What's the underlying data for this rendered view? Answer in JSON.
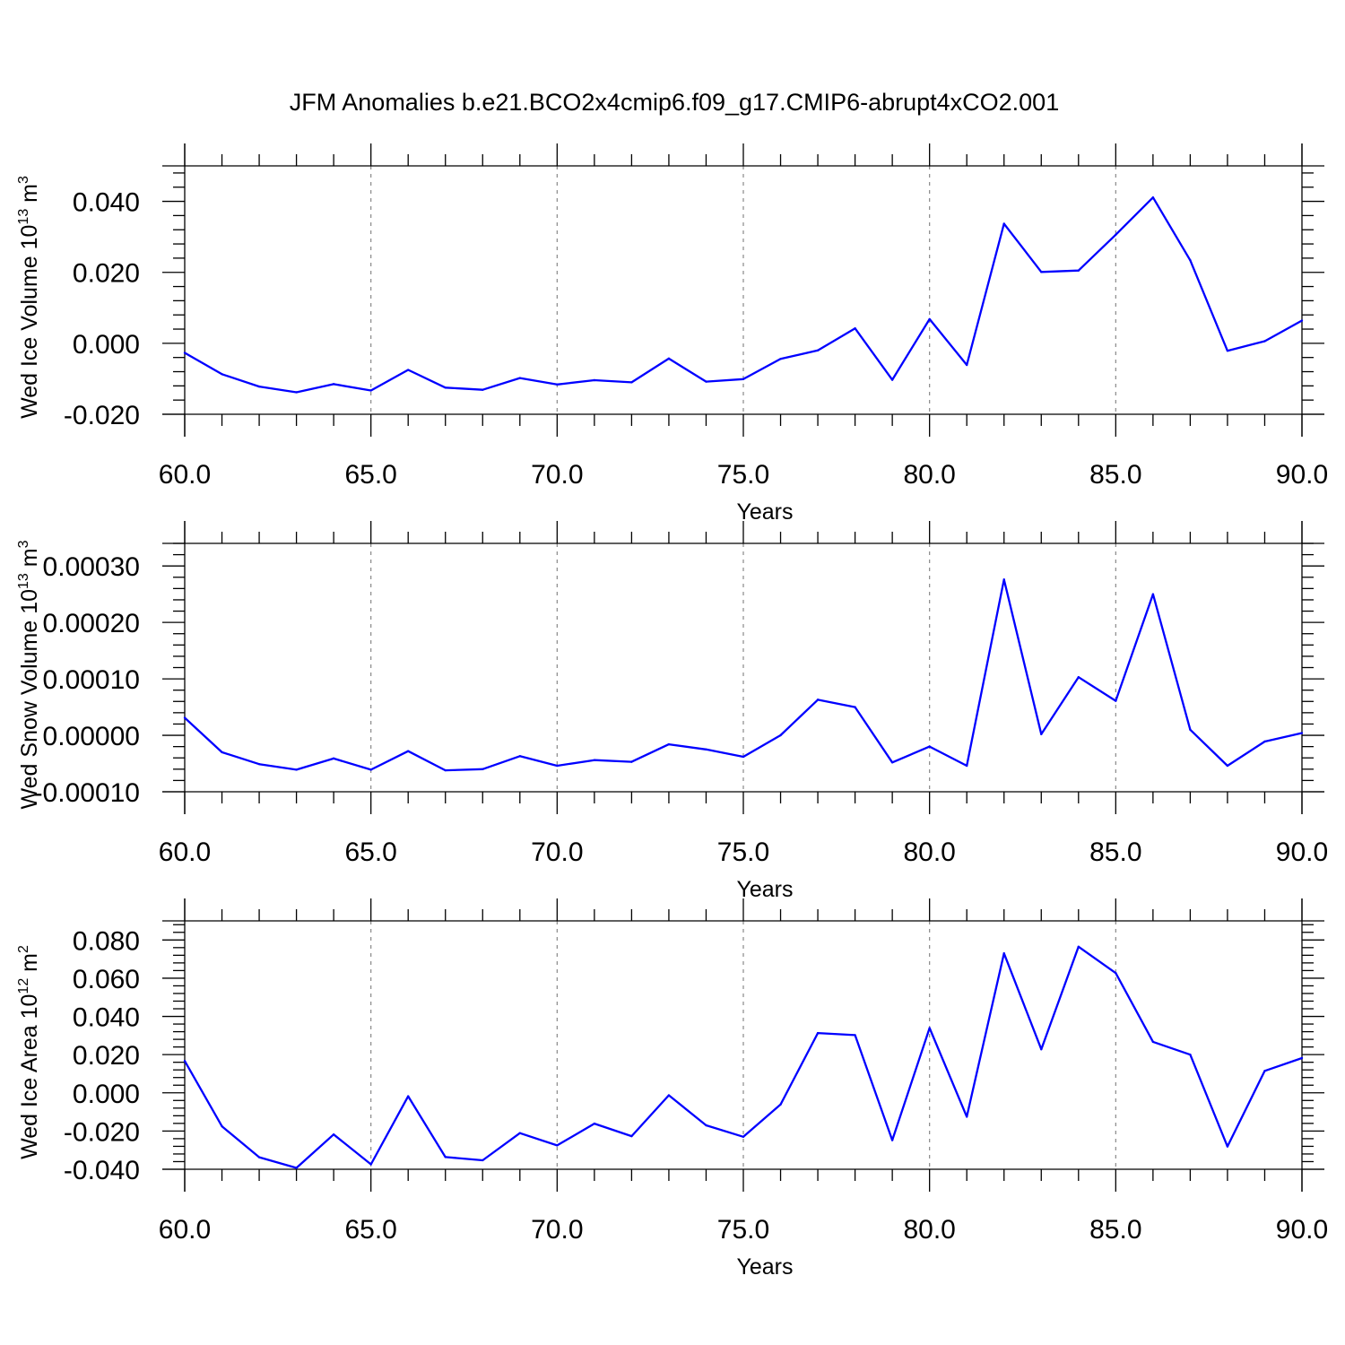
{
  "title": "JFM Anomalies b.e21.BCO2x4cmip6.f09_g17.CMIP6-abrupt4xCO2.001",
  "colors": {
    "line": "#0000ff",
    "axis": "#000000",
    "grid": "#888888"
  },
  "chart_data": [
    {
      "type": "line",
      "title": "",
      "xlabel": "Years",
      "ylabel": {
        "pre": "Wed Ice Volume 10",
        "exp": "13",
        "mid": " m",
        "exp2": "3"
      },
      "xlim": [
        60,
        90
      ],
      "ylim": [
        -0.02,
        0.05
      ],
      "xticks": [
        "60.0",
        "65.0",
        "70.0",
        "75.0",
        "80.0",
        "85.0",
        "90.0"
      ],
      "xtick_values": [
        60,
        65,
        70,
        75,
        80,
        85,
        90
      ],
      "yticks": [
        "-0.020",
        "0.000",
        "0.020",
        "0.040"
      ],
      "ytick_values": [
        -0.02,
        0.0,
        0.02,
        0.04
      ],
      "grid": "dashed vertical at major x ticks",
      "x": [
        60,
        61,
        62,
        63,
        64,
        65,
        66,
        67,
        68,
        69,
        70,
        71,
        72,
        73,
        74,
        75,
        76,
        77,
        78,
        79,
        80,
        81,
        82,
        83,
        84,
        85,
        86,
        87,
        88,
        89,
        90
      ],
      "values": [
        -0.0027,
        -0.0087,
        -0.0122,
        -0.0138,
        -0.0115,
        -0.0133,
        -0.0075,
        -0.0125,
        -0.0131,
        -0.0098,
        -0.0116,
        -0.0104,
        -0.011,
        -0.0043,
        -0.0108,
        -0.0101,
        -0.0044,
        -0.002,
        0.0042,
        -0.0103,
        0.0068,
        -0.0061,
        0.0337,
        0.0201,
        0.0205,
        0.0306,
        0.0411,
        0.0234,
        -0.0021,
        0.0006,
        0.0064
      ]
    },
    {
      "type": "line",
      "title": "",
      "xlabel": "Years",
      "ylabel": {
        "pre": "Wed Snow Volume 10",
        "exp": "13",
        "mid": " m",
        "exp2": "3"
      },
      "xlim": [
        60,
        90
      ],
      "ylim": [
        -0.0001,
        0.00034
      ],
      "xticks": [
        "60.0",
        "65.0",
        "70.0",
        "75.0",
        "80.0",
        "85.0",
        "90.0"
      ],
      "xtick_values": [
        60,
        65,
        70,
        75,
        80,
        85,
        90
      ],
      "yticks": [
        "-0.00010",
        "0.00000",
        "0.00010",
        "0.00020",
        "0.00030"
      ],
      "ytick_values": [
        -0.0001,
        0.0,
        0.0001,
        0.0002,
        0.0003
      ],
      "grid": "dashed vertical at major x ticks",
      "x": [
        60,
        61,
        62,
        63,
        64,
        65,
        66,
        67,
        68,
        69,
        70,
        71,
        72,
        73,
        74,
        75,
        76,
        77,
        78,
        79,
        80,
        81,
        82,
        83,
        84,
        85,
        86,
        87,
        88,
        89,
        90
      ],
      "values": [
        3.1e-05,
        -3e-05,
        -5.1e-05,
        -6.1e-05,
        -4.1e-05,
        -6.1e-05,
        -2.8e-05,
        -6.2e-05,
        -6e-05,
        -3.7e-05,
        -5.4e-05,
        -4.4e-05,
        -4.7e-05,
        -1.6e-05,
        -2.5e-05,
        -3.8e-05,
        0.0,
        6.3e-05,
        5e-05,
        -4.8e-05,
        -2e-05,
        -5.4e-05,
        0.000276,
        2e-06,
        0.000103,
        6.1e-05,
        0.00025,
        1e-05,
        -5.4e-05,
        -1.1e-05,
        4e-06
      ]
    },
    {
      "type": "line",
      "title": "",
      "xlabel": "Years",
      "ylabel": {
        "pre": "Wed Ice Area 10",
        "exp": "12",
        "mid": " m",
        "exp2": "2"
      },
      "xlim": [
        60,
        90
      ],
      "ylim": [
        -0.04,
        0.09
      ],
      "xticks": [
        "60.0",
        "65.0",
        "70.0",
        "75.0",
        "80.0",
        "85.0",
        "90.0"
      ],
      "xtick_values": [
        60,
        65,
        70,
        75,
        80,
        85,
        90
      ],
      "yticks": [
        "-0.040",
        "-0.020",
        "0.000",
        "0.020",
        "0.040",
        "0.060",
        "0.080"
      ],
      "ytick_values": [
        -0.04,
        -0.02,
        0.0,
        0.02,
        0.04,
        0.06,
        0.08
      ],
      "grid": "dashed vertical at major x ticks",
      "x": [
        60,
        61,
        62,
        63,
        64,
        65,
        66,
        67,
        68,
        69,
        70,
        71,
        72,
        73,
        74,
        75,
        76,
        77,
        78,
        79,
        80,
        81,
        82,
        83,
        84,
        85,
        86,
        87,
        88,
        89,
        90
      ],
      "values": [
        0.0167,
        -0.0175,
        -0.0337,
        -0.0393,
        -0.0218,
        -0.0374,
        -0.0018,
        -0.0336,
        -0.0353,
        -0.0211,
        -0.0275,
        -0.0161,
        -0.0227,
        -0.0013,
        -0.017,
        -0.023,
        -0.0061,
        0.0313,
        0.0302,
        -0.0248,
        0.0339,
        -0.0125,
        0.073,
        0.0228,
        0.0765,
        0.0627,
        0.0267,
        0.02,
        -0.0281,
        0.0115,
        0.0182
      ]
    }
  ]
}
